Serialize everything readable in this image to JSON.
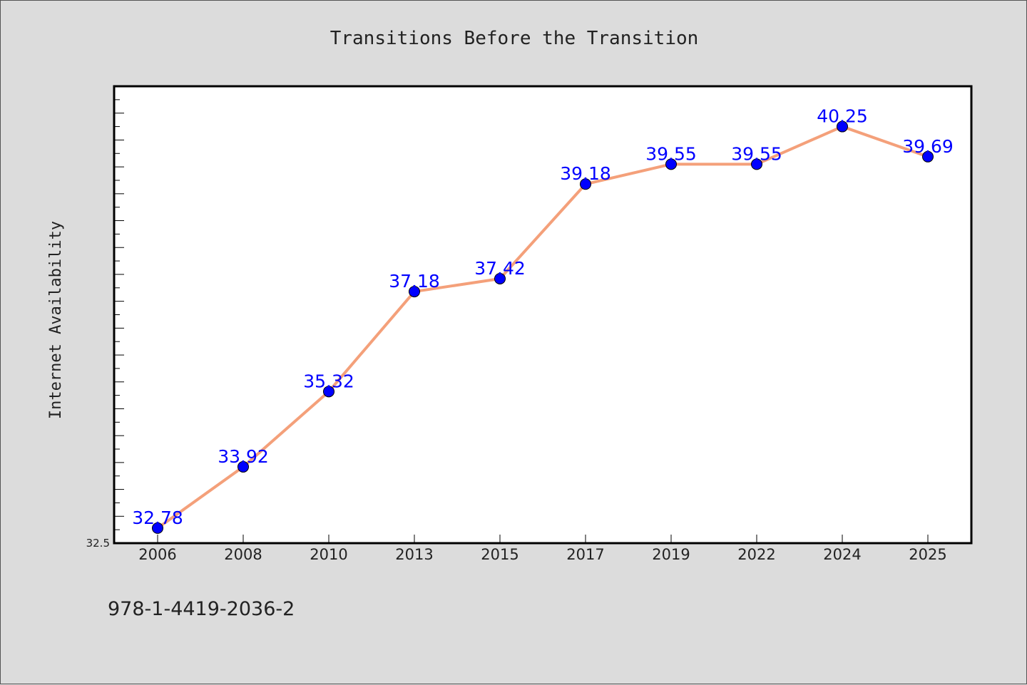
{
  "chart_data": {
    "type": "line",
    "title": "Transitions Before the Transition",
    "xlabel": "",
    "ylabel": "Internet Availability",
    "categories": [
      "2006",
      "2008",
      "2010",
      "2013",
      "2015",
      "2017",
      "2019",
      "2022",
      "2024",
      "2025"
    ],
    "series": [
      {
        "values": [
          32.78,
          33.92,
          35.32,
          37.18,
          37.42,
          39.18,
          39.55,
          39.55,
          40.25,
          39.69
        ],
        "labels": [
          "32.78",
          "33.92",
          "35.32",
          "37.18",
          "37.42",
          "39.18",
          "39.55",
          "39.55",
          "40.25",
          "39.69"
        ]
      }
    ],
    "ylim": [
      32.5,
      41.0
    ],
    "yticks_labeled": [
      "32.5"
    ],
    "grid": false,
    "legend": "none",
    "colors": {
      "line": "#f4a07a",
      "marker": "#0000ff",
      "data_label": "#0000ff",
      "background": "#dcdcdc",
      "plot_background": "#ffffff"
    }
  },
  "footer": {
    "text": "978-1-4419-2036-2"
  }
}
